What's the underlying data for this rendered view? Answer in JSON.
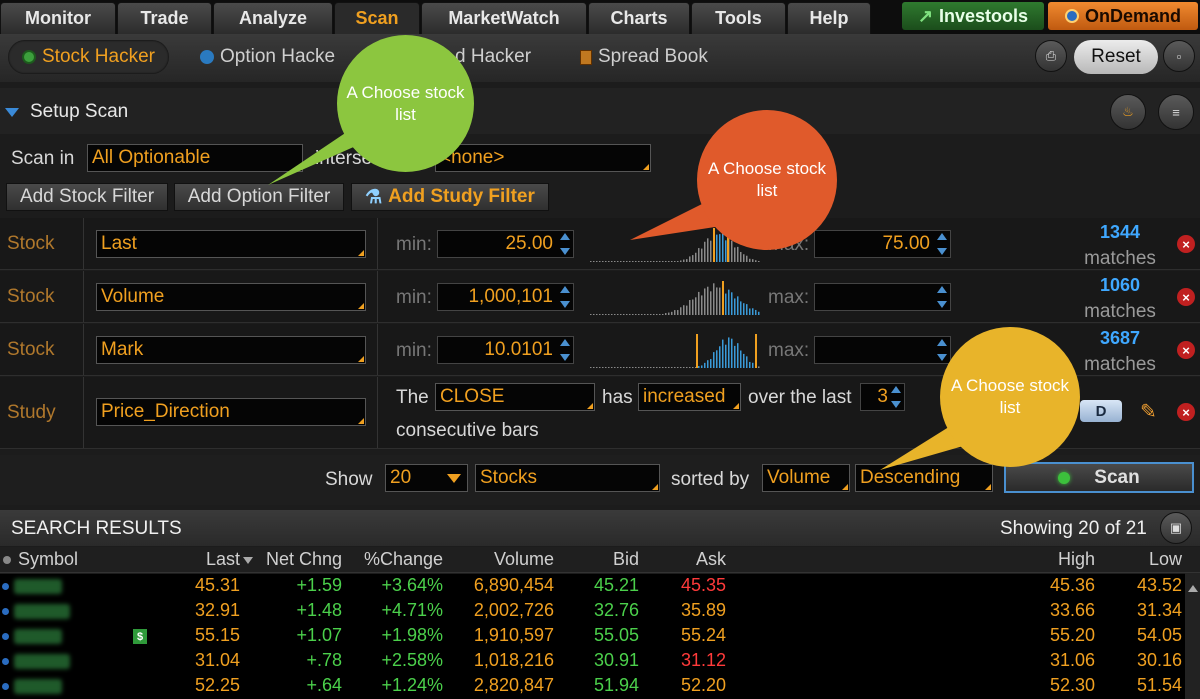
{
  "top_tabs": [
    "Monitor",
    "Trade",
    "Analyze",
    "Scan",
    "MarketWatch",
    "Charts",
    "Tools",
    "Help"
  ],
  "active_top_tab": "Scan",
  "brand_buttons": {
    "investools": "Investools",
    "ondemand": "OnDemand"
  },
  "sub_tabs": [
    "Stock Hacker",
    "Option Hacker",
    "Spread Hacker",
    "Spread Book"
  ],
  "sub_tab_visible_text": {
    "option": "Option Hacke",
    "spread": "d Hacker"
  },
  "reset_label": "Reset",
  "setup": {
    "title": "Setup Scan",
    "scan_in_label": "Scan in",
    "scan_in_value": "All Optionable",
    "intersect_label": "intersect with",
    "intersect_value": "<none>",
    "add_stock_filter": "Add Stock Filter",
    "add_option_filter": "Add Option Filter",
    "add_study_filter": "Add Study Filter"
  },
  "filters": [
    {
      "type": "Stock",
      "name": "Last",
      "min_label": "min:",
      "min": "25.00",
      "max_label": "max:",
      "max": "75.00",
      "count": "1344",
      "matches_label": "matches"
    },
    {
      "type": "Stock",
      "name": "Volume",
      "min_label": "min:",
      "min": "1,000,101",
      "max_label": "max:",
      "max": "",
      "count": "1060",
      "matches_label": "matches"
    },
    {
      "type": "Stock",
      "name": "Mark",
      "min_label": "min:",
      "min": "10.0101",
      "max_label": "max:",
      "max": "",
      "count": "3687",
      "matches_label": "matches"
    }
  ],
  "study": {
    "type": "Study",
    "name": "Price_Direction",
    "the": "The",
    "field": "CLOSE",
    "has": "has",
    "direction": "increased",
    "over": "over the last",
    "bars": "3",
    "suffix": "consecutive bars",
    "period_button": "D"
  },
  "show_row": {
    "show_label": "Show",
    "count": "20",
    "kind": "Stocks",
    "sorted_label": "sorted by",
    "sort_field": "Volume",
    "sort_order": "Descending",
    "scan_button": "Scan"
  },
  "results": {
    "title": "SEARCH RESULTS",
    "showing": "Showing 20 of 21",
    "columns": {
      "symbol": "Symbol",
      "last": "Last",
      "net": "Net Chng",
      "pct": "%Change",
      "volume": "Volume",
      "bid": "Bid",
      "ask": "Ask",
      "high": "High",
      "low": "Low"
    },
    "rows": [
      {
        "last": "45.31",
        "net": "+1.59",
        "pct": "+3.64%",
        "volume": "6,890,454",
        "bid": "45.21",
        "ask": "45.35",
        "ask_color": "red",
        "high": "45.36",
        "low": "43.52"
      },
      {
        "last": "32.91",
        "net": "+1.48",
        "pct": "+4.71%",
        "volume": "2,002,726",
        "bid": "32.76",
        "ask": "35.89",
        "ask_color": "yellow",
        "high": "33.66",
        "low": "31.34"
      },
      {
        "last": "55.15",
        "net": "+1.07",
        "pct": "+1.98%",
        "volume": "1,910,597",
        "bid": "55.05",
        "ask": "55.24",
        "ask_color": "yellow",
        "high": "55.20",
        "low": "54.05",
        "badge": "$"
      },
      {
        "last": "31.04",
        "net": "+.78",
        "pct": "+2.58%",
        "volume": "1,018,216",
        "bid": "30.91",
        "ask": "31.12",
        "ask_color": "red",
        "high": "31.06",
        "low": "30.16"
      },
      {
        "last": "52.25",
        "net": "+.64",
        "pct": "+1.24%",
        "volume": "2,820,847",
        "bid": "51.94",
        "ask": "52.20",
        "ask_color": "yellow",
        "high": "52.30",
        "low": "51.54"
      }
    ]
  },
  "callouts": [
    {
      "text": "A Choose stock list",
      "color": "#8cc63f"
    },
    {
      "text": "A Choose stock list",
      "color": "#e05a2b"
    },
    {
      "text": "A Choose stock list",
      "color": "#e8b42a"
    }
  ],
  "colors": {
    "accent": "#f0a020",
    "match_blue": "#3fa8ff",
    "up_green": "#4bd04b",
    "down_red": "#ff3a3a",
    "delete_red": "#c02020"
  }
}
